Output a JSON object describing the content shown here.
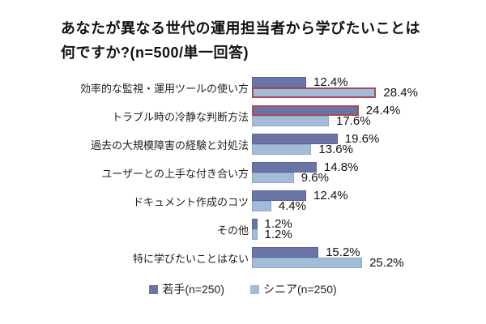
{
  "header": {
    "title_line1": "あなたが異なる世代の運用担当者から学びたいことは",
    "title_line2": "何ですか?(n=500/単一回答)"
  },
  "chart_data": {
    "type": "bar",
    "orientation": "horizontal",
    "title": "あなたが異なる世代の運用担当者から学びたいことは何ですか?(n=500/単一回答)",
    "n_total": "n=500",
    "answer_type": "単一回答",
    "unit": "%",
    "xlim": [
      0,
      30
    ],
    "grid": false,
    "legend_position": "bottom",
    "categories": [
      "効率的な監視・運用ツールの使い方",
      "トラブル時の冷静な判断方法",
      "過去の大規模障害の経験と対処法",
      "ユーザーとの上手な付き合い方",
      "ドキュメント作成のコツ",
      "その他",
      "特に学びたいことはない"
    ],
    "series": [
      {
        "name": "若手(n=250)",
        "color": "#6b75a5",
        "border_color": "#59639a",
        "values": [
          12.4,
          24.4,
          19.6,
          14.8,
          12.4,
          1.2,
          15.2
        ]
      },
      {
        "name": "シニア(n=250)",
        "color": "#a3bdd8",
        "border_color": "#8ba7c8",
        "values": [
          28.4,
          17.6,
          13.6,
          9.6,
          4.4,
          1.2,
          25.2
        ]
      }
    ],
    "value_labels": {
      "young": [
        "12.4%",
        "24.4%",
        "19.6%",
        "14.8%",
        "12.4%",
        "1.2%",
        "15.2%"
      ],
      "senior": [
        "28.4%",
        "17.6%",
        "13.6%",
        "9.6%",
        "4.4%",
        "1.2%",
        "25.2%"
      ]
    },
    "highlights": [
      {
        "category_index": 0,
        "series_index": 1
      },
      {
        "category_index": 1,
        "series_index": 0
      }
    ],
    "highlight_outline_color": "#ab4a55"
  }
}
